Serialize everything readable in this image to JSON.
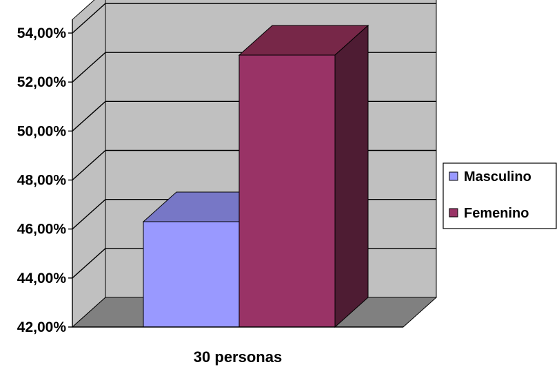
{
  "chart_data": {
    "type": "bar",
    "categories": [
      "30 personas"
    ],
    "series": [
      {
        "name": "Masculino",
        "values": [
          46.3
        ],
        "color": "#9999FF",
        "top_color": "#7777C6"
      },
      {
        "name": "Femenino",
        "values": [
          53.1
        ],
        "color": "#993366",
        "top_color": "#772748",
        "side_color": "#4E1C33"
      }
    ],
    "y_tick_labels": [
      "42,00%",
      "44,00%",
      "46,00%",
      "48,00%",
      "50,00%",
      "52,00%",
      "54,00%"
    ],
    "y_ticks": [
      42,
      44,
      46,
      48,
      50,
      52,
      54
    ],
    "ylim": [
      42,
      54
    ],
    "title": "",
    "xlabel": "",
    "ylabel": "",
    "grid": true,
    "legend_position": "right",
    "three_d": true,
    "wall_color": "#C0C0C0",
    "floor_color": "#808080"
  }
}
